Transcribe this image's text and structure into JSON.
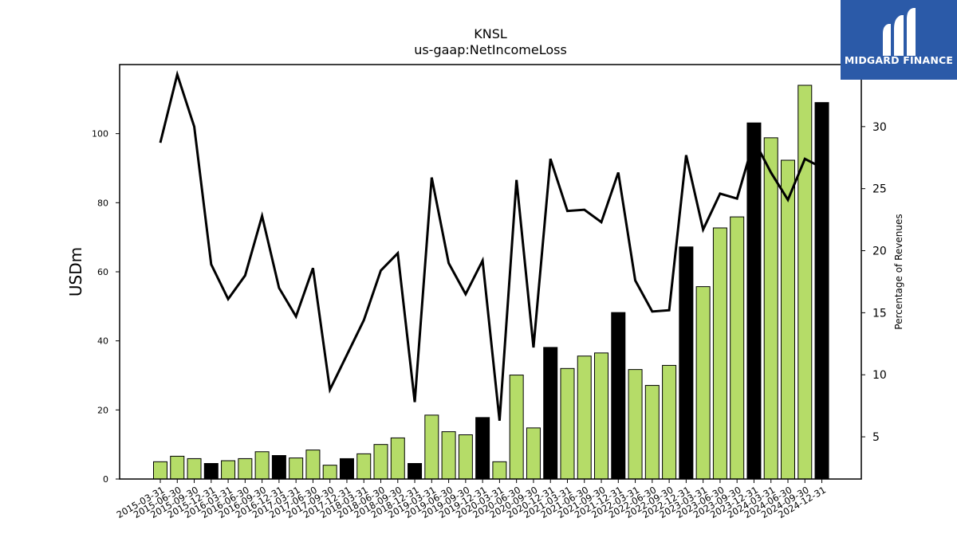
{
  "chart_data": {
    "type": "bar",
    "title": "KNSL",
    "subtitle": "us-gaap:NetIncomeLoss",
    "ylabel": "USDm",
    "y2label": "Percentage of Revenues",
    "ylim": [
      0,
      120
    ],
    "y2lim": [
      1.6,
      35
    ],
    "yticks": [
      0,
      20,
      40,
      60,
      80,
      100
    ],
    "y2ticks": [
      5,
      10,
      15,
      20,
      25,
      30
    ],
    "categories": [
      "2015-03-31",
      "2015-06-30",
      "2015-09-30",
      "2015-12-31",
      "2016-03-31",
      "2016-06-30",
      "2016-09-30",
      "2016-12-31",
      "2017-03-31",
      "2017-06-30",
      "2017-09-30",
      "2017-12-31",
      "2018-03-31",
      "2018-06-30",
      "2018-09-30",
      "2018-12-31",
      "2019-03-31",
      "2019-06-30",
      "2019-09-30",
      "2019-12-31",
      "2020-03-31",
      "2020-06-30",
      "2020-09-30",
      "2020-12-31",
      "2021-03-31",
      "2021-06-30",
      "2021-09-30",
      "2021-12-31",
      "2022-03-31",
      "2022-06-30",
      "2022-09-30",
      "2022-12-31",
      "2023-03-31",
      "2023-06-30",
      "2023-09-30",
      "2023-12-31",
      "2024-03-31",
      "2024-06-30",
      "2024-09-30",
      "2024-12-31"
    ],
    "series": [
      {
        "type": "bar",
        "values": [
          5.0,
          6.6,
          5.9,
          4.5,
          5.3,
          5.9,
          7.9,
          6.8,
          6.1,
          8.4,
          4.0,
          5.9,
          7.3,
          10.0,
          11.9,
          4.5,
          18.5,
          13.7,
          12.8,
          17.8,
          5.0,
          30.1,
          14.8,
          38.1,
          32.0,
          35.6,
          36.5,
          48.2,
          31.7,
          27.1,
          32.9,
          67.2,
          55.7,
          72.7,
          75.9,
          103.1,
          98.8,
          92.3,
          114.0,
          109.0
        ],
        "colors": {
          "quarter": "#b5dc68",
          "year_end": "#000000"
        }
      },
      {
        "type": "line",
        "axis": "right",
        "values": [
          28.7,
          34.2,
          30.0,
          18.9,
          16.1,
          18.0,
          22.8,
          17.0,
          14.7,
          18.6,
          8.8,
          11.6,
          14.4,
          18.4,
          19.8,
          7.8,
          25.9,
          19.0,
          16.5,
          19.2,
          6.3,
          25.7,
          12.2,
          27.4,
          23.2,
          23.3,
          22.3,
          26.3,
          17.6,
          15.1,
          15.2,
          27.7,
          21.7,
          24.6,
          24.2,
          28.9,
          26.3,
          24.1,
          27.4,
          26.7
        ],
        "color": "#000000"
      }
    ],
    "grid": false
  },
  "logo": {
    "text": "MIDGARD FINANCE",
    "color": "#2b5aa8"
  }
}
